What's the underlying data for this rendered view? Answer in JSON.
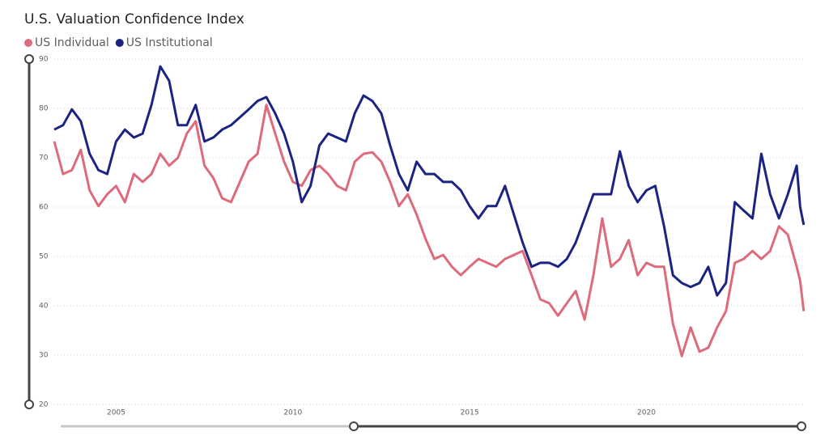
{
  "chart_data": {
    "type": "line",
    "title": "U.S. Valuation Confidence Index",
    "x": [
      2003.25,
      2003.5,
      2003.75,
      2004.0,
      2004.25,
      2004.5,
      2004.75,
      2005.0,
      2005.25,
      2005.5,
      2005.75,
      2006.0,
      2006.25,
      2006.5,
      2006.75,
      2007.0,
      2007.25,
      2007.5,
      2007.75,
      2008.0,
      2008.25,
      2008.5,
      2008.75,
      2009.0,
      2009.25,
      2009.5,
      2009.75,
      2010.0,
      2010.25,
      2010.5,
      2010.75,
      2011.0,
      2011.25,
      2011.5,
      2011.75,
      2012.0,
      2012.25,
      2012.5,
      2012.75,
      2013.0,
      2013.25,
      2013.5,
      2013.75,
      2014.0,
      2014.25,
      2014.5,
      2014.75,
      2015.0,
      2015.25,
      2015.5,
      2015.75,
      2016.0,
      2016.25,
      2016.5,
      2016.75,
      2017.0,
      2017.25,
      2017.5,
      2017.75,
      2018.0,
      2018.25,
      2018.5,
      2018.75,
      2019.0,
      2019.25,
      2019.5,
      2019.75,
      2020.0,
      2020.25,
      2020.5,
      2020.75,
      2021.0,
      2021.25,
      2021.5,
      2021.75,
      2022.0,
      2022.25,
      2022.5,
      2022.75,
      2023.0,
      2023.25,
      2023.5,
      2023.75,
      2024.0,
      2024.25,
      2024.35,
      2024.45
    ],
    "series": [
      {
        "name": "US Individual",
        "color": "#dd6b7b",
        "values": [
          73.3,
          66.7,
          67.5,
          71.6,
          63.4,
          60.2,
          62.6,
          64.3,
          61.0,
          66.7,
          65.1,
          66.7,
          70.8,
          68.4,
          70.0,
          74.9,
          77.4,
          68.4,
          65.9,
          61.8,
          61.0,
          65.1,
          69.2,
          70.8,
          80.7,
          74.9,
          69.2,
          65.1,
          64.3,
          67.5,
          68.4,
          66.7,
          64.3,
          63.4,
          69.2,
          70.8,
          71.1,
          69.2,
          65.1,
          60.2,
          62.6,
          58.5,
          53.6,
          49.5,
          50.3,
          47.9,
          46.2,
          47.9,
          49.5,
          48.7,
          47.9,
          49.5,
          50.3,
          51.1,
          46.2,
          41.3,
          40.5,
          38.0,
          40.5,
          43.0,
          37.2,
          46.2,
          57.7,
          47.9,
          49.5,
          53.3,
          46.2,
          48.7,
          47.9,
          47.9,
          36.4,
          29.8,
          35.6,
          30.7,
          31.5,
          35.6,
          38.9,
          48.7,
          49.5,
          51.1,
          49.5,
          51.1,
          56.1,
          54.4,
          47.9,
          45.0,
          38.9
        ]
      },
      {
        "name": "US Institutional",
        "color": "#1b2483",
        "values": [
          75.7,
          76.6,
          79.8,
          77.4,
          70.8,
          67.5,
          66.7,
          73.3,
          75.7,
          74.1,
          74.9,
          80.7,
          88.5,
          85.6,
          76.6,
          76.6,
          80.7,
          73.3,
          74.1,
          75.7,
          76.6,
          78.2,
          79.8,
          81.5,
          82.3,
          79.0,
          74.9,
          69.2,
          61.0,
          64.3,
          72.5,
          74.9,
          74.1,
          73.3,
          79.0,
          82.6,
          81.5,
          79.0,
          72.5,
          66.7,
          63.4,
          69.2,
          66.7,
          66.7,
          65.1,
          65.1,
          63.4,
          60.2,
          57.7,
          60.2,
          60.2,
          64.3,
          58.5,
          52.8,
          47.9,
          48.7,
          48.7,
          47.9,
          49.5,
          52.8,
          57.7,
          62.6,
          62.6,
          62.6,
          71.3,
          64.3,
          61.0,
          63.4,
          64.3,
          56.1,
          46.2,
          44.6,
          43.8,
          44.6,
          47.9,
          42.1,
          44.6,
          61.0,
          59.3,
          57.7,
          70.8,
          62.6,
          57.7,
          62.6,
          68.4,
          60.0,
          56.4
        ]
      }
    ],
    "xlim": [
      2003.25,
      2024.5
    ],
    "xticks": [
      2005,
      2010,
      2015,
      2020
    ],
    "ylim": [
      20,
      90
    ],
    "yticks": [
      20,
      30,
      40,
      50,
      60,
      70,
      80,
      90
    ],
    "grid": true
  }
}
